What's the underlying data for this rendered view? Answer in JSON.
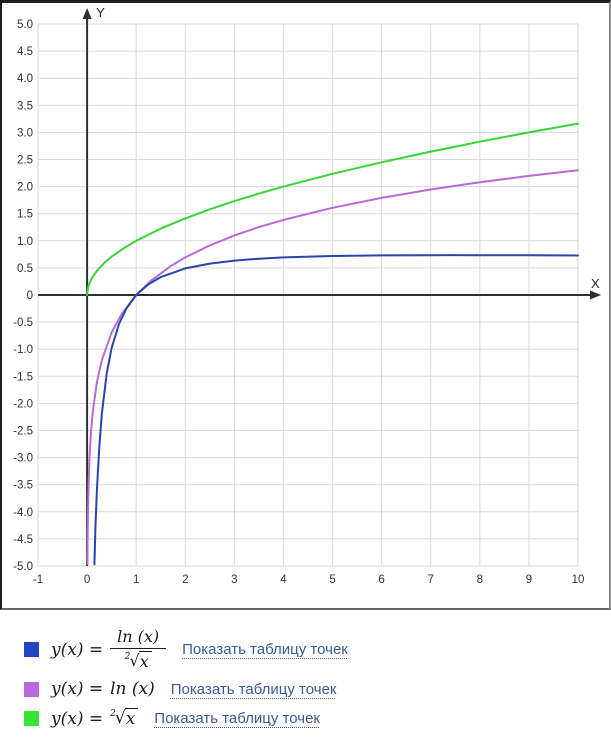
{
  "chart_data": {
    "type": "line",
    "title": "",
    "xlabel": "X",
    "ylabel": "Y",
    "xlim": [
      -1,
      10
    ],
    "ylim": [
      -5,
      5
    ],
    "grid": true,
    "grid_color": "#d9d9d9",
    "axis_color": "#2f2f2f",
    "tick_label_color": "#333333",
    "x_ticks": {
      "values": [
        -1,
        0,
        1,
        2,
        3,
        4,
        5,
        6,
        7,
        8,
        9,
        10
      ],
      "labels": [
        "-1",
        "0",
        "1",
        "2",
        "3",
        "4",
        "5",
        "6",
        "7",
        "8",
        "9",
        "10"
      ]
    },
    "y_ticks": {
      "values": [
        5,
        4.5,
        4,
        3.5,
        3,
        2.5,
        2,
        1.5,
        1,
        0.5,
        0,
        -0.5,
        -1,
        -1.5,
        -2,
        -2.5,
        -3,
        -3.5,
        -4,
        -4.5,
        -5
      ],
      "labels": [
        "5.0",
        "4.5",
        "4.0",
        "3.5",
        "3.0",
        "2.5",
        "2.0",
        "1.5",
        "1.0",
        "0.5",
        "0",
        "-0.5",
        "-1.0",
        "-1.5",
        "-2.0",
        "-2.5",
        "-3.0",
        "-3.5",
        "-4.0",
        "-4.5",
        "-5.0"
      ]
    },
    "series": [
      {
        "name": "y(x) = ²√x",
        "color": "#35d635",
        "points": [
          [
            0,
            0
          ],
          [
            0.02,
            0.141
          ],
          [
            0.05,
            0.224
          ],
          [
            0.1,
            0.316
          ],
          [
            0.2,
            0.447
          ],
          [
            0.35,
            0.592
          ],
          [
            0.5,
            0.707
          ],
          [
            0.75,
            0.866
          ],
          [
            1,
            1
          ],
          [
            1.5,
            1.225
          ],
          [
            2,
            1.414
          ],
          [
            2.5,
            1.581
          ],
          [
            3,
            1.732
          ],
          [
            3.5,
            1.871
          ],
          [
            4,
            2
          ],
          [
            5,
            2.236
          ],
          [
            6,
            2.449
          ],
          [
            7,
            2.646
          ],
          [
            8,
            2.828
          ],
          [
            9,
            3
          ],
          [
            10,
            3.162
          ]
        ]
      },
      {
        "name": "y(x) = ln(x)",
        "color": "#b76ad8",
        "points": [
          [
            0.007,
            -4.962
          ],
          [
            0.01,
            -4.605
          ],
          [
            0.015,
            -4.2
          ],
          [
            0.02,
            -3.912
          ],
          [
            0.03,
            -3.507
          ],
          [
            0.05,
            -2.996
          ],
          [
            0.08,
            -2.526
          ],
          [
            0.12,
            -2.12
          ],
          [
            0.2,
            -1.609
          ],
          [
            0.3,
            -1.204
          ],
          [
            0.5,
            -0.693
          ],
          [
            0.7,
            -0.357
          ],
          [
            1,
            0
          ],
          [
            1.3,
            0.262
          ],
          [
            1.7,
            0.531
          ],
          [
            2,
            0.693
          ],
          [
            2.5,
            0.916
          ],
          [
            3,
            1.099
          ],
          [
            3.5,
            1.253
          ],
          [
            4,
            1.386
          ],
          [
            5,
            1.609
          ],
          [
            6,
            1.792
          ],
          [
            7,
            1.946
          ],
          [
            8,
            2.079
          ],
          [
            9,
            2.197
          ],
          [
            10,
            2.303
          ]
        ]
      },
      {
        "name": "y(x) = ln(x)/²√x",
        "color": "#2a43ad",
        "points": [
          [
            0.148,
            -4.97
          ],
          [
            0.17,
            -4.298
          ],
          [
            0.2,
            -3.599
          ],
          [
            0.25,
            -2.773
          ],
          [
            0.3,
            -2.198
          ],
          [
            0.4,
            -1.449
          ],
          [
            0.5,
            -0.98
          ],
          [
            0.65,
            -0.535
          ],
          [
            0.8,
            -0.249
          ],
          [
            1,
            0
          ],
          [
            1.25,
            0.2
          ],
          [
            1.5,
            0.331
          ],
          [
            2,
            0.49
          ],
          [
            2.5,
            0.58
          ],
          [
            3,
            0.634
          ],
          [
            3.5,
            0.67
          ],
          [
            4,
            0.693
          ],
          [
            5,
            0.72
          ],
          [
            6,
            0.731
          ],
          [
            7,
            0.735
          ],
          [
            7.39,
            0.736
          ],
          [
            8,
            0.735
          ],
          [
            9,
            0.732
          ],
          [
            10,
            0.728
          ]
        ]
      }
    ]
  },
  "legend": {
    "rows": [
      {
        "color": "#2343c1",
        "formula_text": "y(x) = ln(x)/²√x",
        "lhs": "y(x) =",
        "numerator": "ln (x)",
        "root_index": "2",
        "radical": "√",
        "radicand": "x",
        "link": "Показать таблицу точек"
      },
      {
        "color": "#b968dd",
        "formula_text": "y(x) = ln(x)",
        "lhs": "y(x) =",
        "rhs": "ln (x)",
        "link": "Показать таблицу точек"
      },
      {
        "color": "#3ae33a",
        "formula_text": "y(x) = ²√x",
        "lhs": "y(x) =",
        "root_index": "2",
        "radical": "√",
        "radicand": "x",
        "link": "Показать таблицу точек"
      }
    ]
  }
}
